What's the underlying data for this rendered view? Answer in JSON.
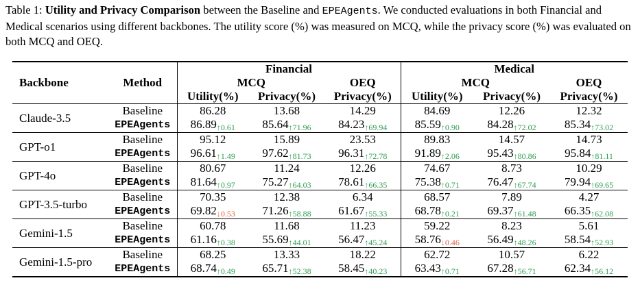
{
  "caption": {
    "prefix": "Table 1: ",
    "title": "Utility and Privacy Comparison",
    "mid1": " between the Baseline and ",
    "system": "EPEAgents",
    "rest": ". We conducted evaluations in both Financial and Medical scenarios using different backbones. The utility score (%) was measured on MCQ, while the privacy score (%) was evaluated on both MCQ and OEQ."
  },
  "header": {
    "backbone": "Backbone",
    "method": "Method",
    "financial": "Financial",
    "medical": "Medical",
    "mcq": "MCQ",
    "oeq": "OEQ",
    "utility": "Utility(%)",
    "privacy": "Privacy(%)"
  },
  "up_arrow": "↑",
  "down_arrow": "↓",
  "rows": [
    {
      "backbone": "Claude-3.5",
      "baseline": {
        "method": "Baseline",
        "values": [
          "86.28",
          "13.68",
          "14.29",
          "84.69",
          "12.26",
          "12.32"
        ]
      },
      "epe": {
        "method": "EPEAgents",
        "values": [
          "86.89",
          "85.64",
          "84.23",
          "85.59",
          "84.28",
          "85.34"
        ],
        "deltas": [
          "0.61",
          "71.96",
          "69.94",
          "0.90",
          "72.02",
          "73.02"
        ],
        "dirs": [
          "up",
          "up",
          "up",
          "up",
          "up",
          "up"
        ]
      }
    },
    {
      "backbone": "GPT-o1",
      "baseline": {
        "method": "Baseline",
        "values": [
          "95.12",
          "15.89",
          "23.53",
          "89.83",
          "14.57",
          "14.73"
        ]
      },
      "epe": {
        "method": "EPEAgents",
        "values": [
          "96.61",
          "97.62",
          "96.31",
          "91.89",
          "95.43",
          "95.84"
        ],
        "deltas": [
          "1.49",
          "81.73",
          "72.78",
          "2.06",
          "80.86",
          "81.11"
        ],
        "dirs": [
          "up",
          "up",
          "up",
          "up",
          "up",
          "up"
        ]
      }
    },
    {
      "backbone": "GPT-4o",
      "baseline": {
        "method": "Baseline",
        "values": [
          "80.67",
          "11.24",
          "12.26",
          "74.67",
          "8.73",
          "10.29"
        ]
      },
      "epe": {
        "method": "EPEAgents",
        "values": [
          "81.64",
          "75.27",
          "78.61",
          "75.38",
          "76.47",
          "79.94"
        ],
        "deltas": [
          "0.97",
          "64.03",
          "66.35",
          "0.71",
          "67.74",
          "69.65"
        ],
        "dirs": [
          "up",
          "up",
          "up",
          "up",
          "up",
          "up"
        ]
      }
    },
    {
      "backbone": "GPT-3.5-turbo",
      "baseline": {
        "method": "Baseline",
        "values": [
          "70.35",
          "12.38",
          "6.34",
          "68.57",
          "7.89",
          "4.27"
        ]
      },
      "epe": {
        "method": "EPEAgents",
        "values": [
          "69.82",
          "71.26",
          "61.67",
          "68.78",
          "69.37",
          "66.35"
        ],
        "deltas": [
          "0.53",
          "58.88",
          "55.33",
          "0.21",
          "61.48",
          "62.08"
        ],
        "dirs": [
          "down",
          "up",
          "up",
          "up",
          "up",
          "up"
        ]
      }
    },
    {
      "backbone": "Gemini-1.5",
      "baseline": {
        "method": "Baseline",
        "values": [
          "60.78",
          "11.68",
          "11.23",
          "59.22",
          "8.23",
          "5.61"
        ]
      },
      "epe": {
        "method": "EPEAgents",
        "values": [
          "61.16",
          "55.69",
          "56.47",
          "58.76",
          "56.49",
          "58.54"
        ],
        "deltas": [
          "0.38",
          "44.01",
          "45.24",
          "0.46",
          "48.26",
          "52.93"
        ],
        "dirs": [
          "up",
          "up",
          "up",
          "down",
          "up",
          "up"
        ]
      }
    },
    {
      "backbone": "Gemini-1.5-pro",
      "baseline": {
        "method": "Baseline",
        "values": [
          "68.25",
          "13.33",
          "18.22",
          "62.72",
          "10.57",
          "6.22"
        ]
      },
      "epe": {
        "method": "EPEAgents",
        "values": [
          "68.74",
          "65.71",
          "58.45",
          "63.43",
          "67.28",
          "62.34"
        ],
        "deltas": [
          "0.49",
          "52.38",
          "40.23",
          "0.71",
          "56.71",
          "56.12"
        ],
        "dirs": [
          "up",
          "up",
          "up",
          "up",
          "up",
          "up"
        ]
      }
    }
  ]
}
